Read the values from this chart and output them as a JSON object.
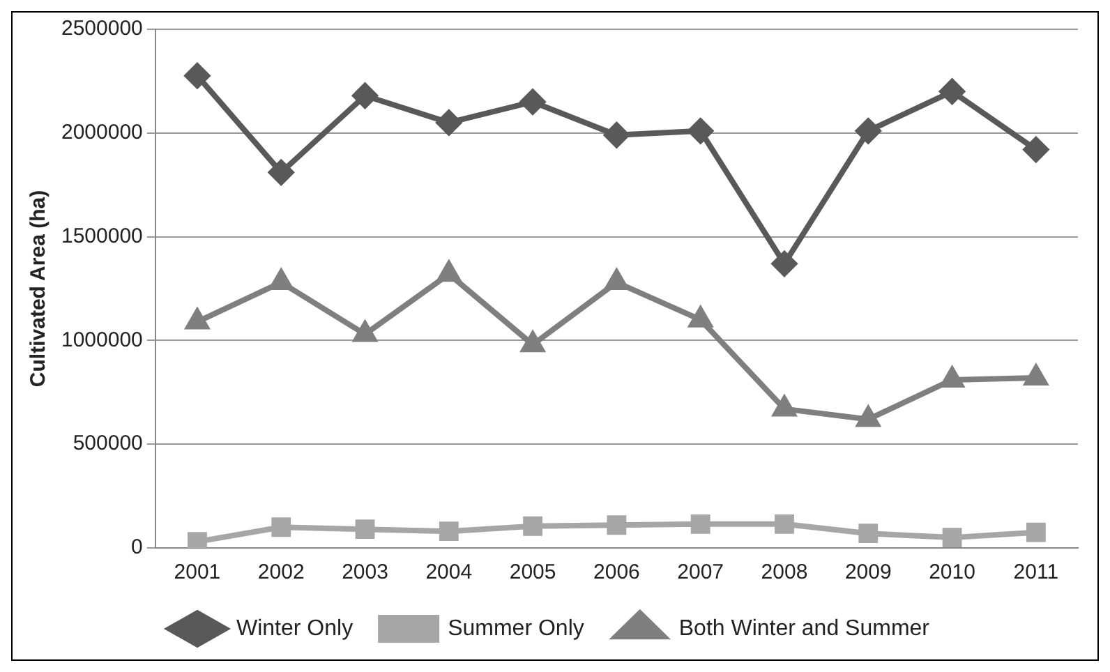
{
  "chart_data": {
    "type": "line",
    "ylabel": "Cultivated Area (ha)",
    "categories": [
      "2001",
      "2002",
      "2003",
      "2004",
      "2005",
      "2006",
      "2007",
      "2008",
      "2009",
      "2010",
      "2011"
    ],
    "series": [
      {
        "name": "Winter Only",
        "color": "#595959",
        "marker": "diamond",
        "values": [
          2276000,
          1810000,
          2180000,
          2050000,
          2150000,
          1990000,
          2010000,
          1370000,
          2010000,
          2200000,
          1920000
        ]
      },
      {
        "name": "Summer Only",
        "color": "#a6a6a6",
        "marker": "square",
        "values": [
          30000,
          100000,
          90000,
          80000,
          105000,
          110000,
          115000,
          115000,
          70000,
          50000,
          75000
        ]
      },
      {
        "name": "Both Winter and Summer",
        "color": "#7f7f7f",
        "marker": "triangle",
        "values": [
          1090000,
          1280000,
          1030000,
          1320000,
          980000,
          1280000,
          1100000,
          670000,
          620000,
          810000,
          820000
        ]
      }
    ],
    "ylim": [
      0,
      2500000
    ],
    "yticks": [
      0,
      500000,
      1000000,
      1500000,
      2000000,
      2500000
    ],
    "grid": "y",
    "legend": "bottom"
  }
}
